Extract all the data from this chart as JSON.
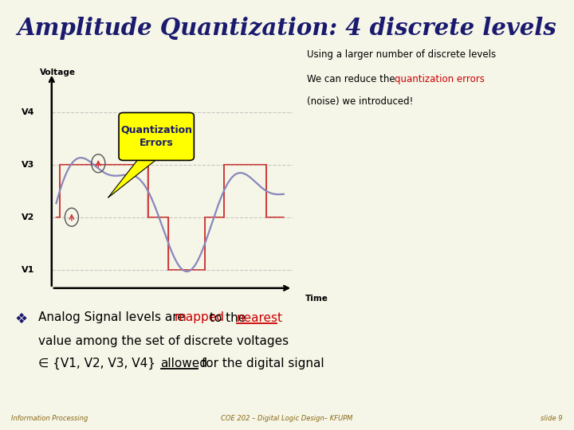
{
  "title": "Amplitude Quantization: 4 discrete levels",
  "title_bg": "#b8b8d8",
  "slide_bg": "#f5f5e8",
  "footer_bg": "#ffffcc",
  "footer_left": "Information Processing",
  "footer_center": "COE 202 – Digital Logic Design– KFUPM",
  "footer_right": "slide 9",
  "voltage_label": "Voltage",
  "time_label": "Time",
  "v_levels": [
    "V4",
    "V3",
    "V2",
    "V1"
  ],
  "v_values": [
    0.8,
    0.57,
    0.34,
    0.11
  ],
  "annotation_box_text": "Quantization\nErrors",
  "annotation_box_color": "#ffff00",
  "info_text_line1": "Using a larger number of discrete levels",
  "info_text_line2": "We can reduce the ",
  "info_text_highlight": "quantization errors",
  "info_text_line3": "(noise) we introduced!",
  "analog_color": "#8888bb",
  "quantized_color": "#cc3333",
  "grid_color": "#aaaaaa"
}
